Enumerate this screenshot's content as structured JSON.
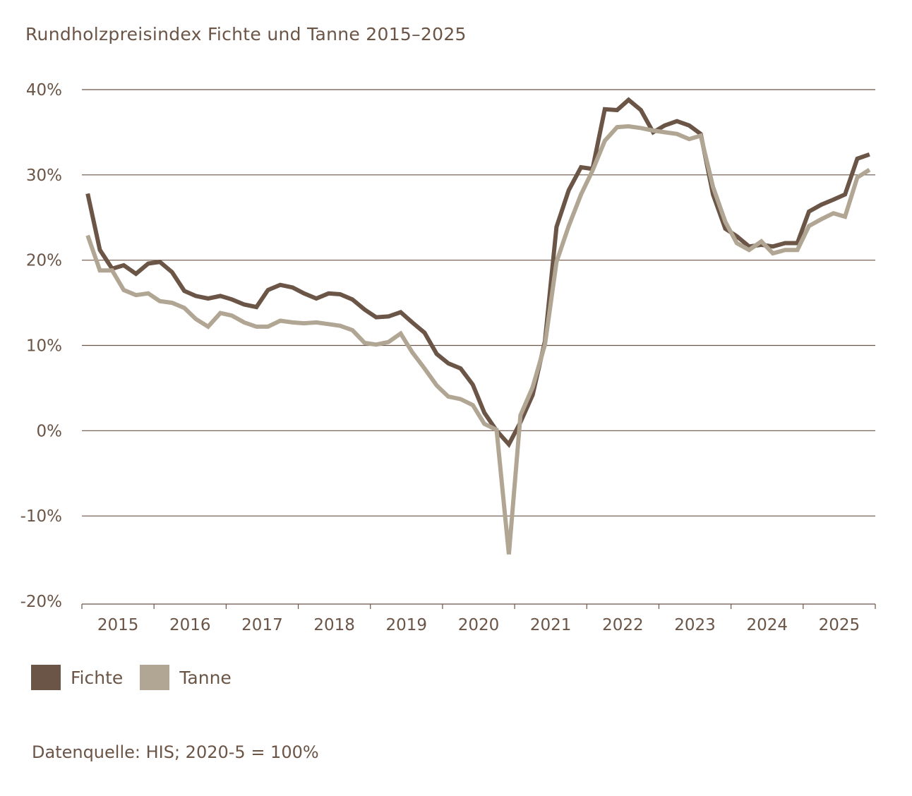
{
  "title": "Rundholzpreisindex Fichte und Tanne 2015–2025",
  "source": "Datenquelle: HIS; 2020-5 = 100%",
  "colors": {
    "fichte": "#6b5547",
    "tanne": "#b1a593",
    "grid": "#6b5547",
    "text": "#6b5547"
  },
  "chart_data": {
    "type": "line",
    "title": "Rundholzpreisindex Fichte und Tanne 2015–2025",
    "xlabel": "",
    "ylabel": "",
    "ylim": [
      -20,
      40
    ],
    "yticks": [
      40,
      30,
      20,
      10,
      0,
      -10,
      -20
    ],
    "ytick_labels": [
      "40%",
      "30%",
      "20%",
      "10%",
      "0%",
      "-10%",
      "-20%"
    ],
    "categories": [
      "2015",
      "2016",
      "2017",
      "2018",
      "2019",
      "2020",
      "2021",
      "2022",
      "2023",
      "2024",
      "2025"
    ],
    "x_start": 2015.0,
    "x_end": 2026.0,
    "grid": true,
    "legend_position": "bottom-left",
    "series": [
      {
        "name": "Fichte",
        "color": "#6b5547",
        "points": [
          [
            2015.08,
            27.8
          ],
          [
            2015.25,
            21.2
          ],
          [
            2015.42,
            19.0
          ],
          [
            2015.58,
            19.4
          ],
          [
            2015.75,
            18.4
          ],
          [
            2015.92,
            19.6
          ],
          [
            2016.08,
            19.8
          ],
          [
            2016.25,
            18.6
          ],
          [
            2016.42,
            16.4
          ],
          [
            2016.58,
            15.8
          ],
          [
            2016.75,
            15.5
          ],
          [
            2016.92,
            15.8
          ],
          [
            2017.08,
            15.4
          ],
          [
            2017.25,
            14.8
          ],
          [
            2017.42,
            14.5
          ],
          [
            2017.58,
            16.5
          ],
          [
            2017.75,
            17.1
          ],
          [
            2017.92,
            16.8
          ],
          [
            2018.08,
            16.1
          ],
          [
            2018.25,
            15.5
          ],
          [
            2018.42,
            16.1
          ],
          [
            2018.58,
            16.0
          ],
          [
            2018.75,
            15.4
          ],
          [
            2018.92,
            14.2
          ],
          [
            2019.08,
            13.3
          ],
          [
            2019.25,
            13.4
          ],
          [
            2019.42,
            13.9
          ],
          [
            2019.58,
            12.7
          ],
          [
            2019.75,
            11.5
          ],
          [
            2019.92,
            9.0
          ],
          [
            2020.08,
            7.9
          ],
          [
            2020.25,
            7.3
          ],
          [
            2020.42,
            5.4
          ],
          [
            2020.58,
            2.1
          ],
          [
            2020.75,
            0.0
          ],
          [
            2020.92,
            -1.6
          ],
          [
            2021.08,
            1.0
          ],
          [
            2021.25,
            4.2
          ],
          [
            2021.42,
            10.5
          ],
          [
            2021.58,
            23.9
          ],
          [
            2021.75,
            28.2
          ],
          [
            2021.92,
            30.9
          ],
          [
            2022.08,
            30.7
          ],
          [
            2022.25,
            37.7
          ],
          [
            2022.42,
            37.6
          ],
          [
            2022.58,
            38.8
          ],
          [
            2022.75,
            37.6
          ],
          [
            2022.92,
            35.0
          ],
          [
            2023.08,
            35.8
          ],
          [
            2023.25,
            36.3
          ],
          [
            2023.42,
            35.8
          ],
          [
            2023.58,
            34.8
          ],
          [
            2023.75,
            27.7
          ],
          [
            2023.92,
            23.7
          ],
          [
            2024.08,
            22.8
          ],
          [
            2024.25,
            21.6
          ],
          [
            2024.42,
            21.8
          ],
          [
            2024.58,
            21.6
          ],
          [
            2024.75,
            22.0
          ],
          [
            2024.92,
            22.0
          ],
          [
            2025.08,
            25.7
          ],
          [
            2025.25,
            26.5
          ],
          [
            2025.42,
            27.1
          ],
          [
            2025.58,
            27.7
          ],
          [
            2025.75,
            31.9
          ],
          [
            2025.92,
            32.4
          ]
        ]
      },
      {
        "name": "Tanne",
        "color": "#b1a593",
        "points": [
          [
            2015.08,
            22.9
          ],
          [
            2015.25,
            18.8
          ],
          [
            2015.42,
            18.8
          ],
          [
            2015.58,
            16.5
          ],
          [
            2015.75,
            15.9
          ],
          [
            2015.92,
            16.1
          ],
          [
            2016.08,
            15.2
          ],
          [
            2016.25,
            15.0
          ],
          [
            2016.42,
            14.4
          ],
          [
            2016.58,
            13.1
          ],
          [
            2016.75,
            12.2
          ],
          [
            2016.92,
            13.8
          ],
          [
            2017.08,
            13.5
          ],
          [
            2017.25,
            12.7
          ],
          [
            2017.42,
            12.2
          ],
          [
            2017.58,
            12.2
          ],
          [
            2017.75,
            12.9
          ],
          [
            2017.92,
            12.7
          ],
          [
            2018.08,
            12.6
          ],
          [
            2018.25,
            12.7
          ],
          [
            2018.42,
            12.5
          ],
          [
            2018.58,
            12.3
          ],
          [
            2018.75,
            11.8
          ],
          [
            2018.92,
            10.3
          ],
          [
            2019.08,
            10.1
          ],
          [
            2019.25,
            10.4
          ],
          [
            2019.42,
            11.4
          ],
          [
            2019.58,
            9.2
          ],
          [
            2019.75,
            7.3
          ],
          [
            2019.92,
            5.3
          ],
          [
            2020.08,
            4.0
          ],
          [
            2020.25,
            3.7
          ],
          [
            2020.42,
            3.0
          ],
          [
            2020.58,
            0.8
          ],
          [
            2020.75,
            0.1
          ],
          [
            2020.92,
            -14.5
          ],
          [
            2021.08,
            1.8
          ],
          [
            2021.25,
            5.1
          ],
          [
            2021.42,
            10.1
          ],
          [
            2021.58,
            19.8
          ],
          [
            2021.75,
            24.0
          ],
          [
            2021.92,
            27.7
          ],
          [
            2022.08,
            30.5
          ],
          [
            2022.25,
            34.0
          ],
          [
            2022.42,
            35.6
          ],
          [
            2022.58,
            35.7
          ],
          [
            2022.75,
            35.5
          ],
          [
            2022.92,
            35.2
          ],
          [
            2023.08,
            35.0
          ],
          [
            2023.25,
            34.8
          ],
          [
            2023.42,
            34.2
          ],
          [
            2023.58,
            34.6
          ],
          [
            2023.75,
            28.6
          ],
          [
            2023.92,
            24.5
          ],
          [
            2024.08,
            22.0
          ],
          [
            2024.25,
            21.2
          ],
          [
            2024.42,
            22.2
          ],
          [
            2024.58,
            20.8
          ],
          [
            2024.75,
            21.2
          ],
          [
            2024.92,
            21.2
          ],
          [
            2025.08,
            24.0
          ],
          [
            2025.25,
            24.8
          ],
          [
            2025.42,
            25.5
          ],
          [
            2025.58,
            25.1
          ],
          [
            2025.75,
            29.7
          ],
          [
            2025.92,
            30.6
          ]
        ]
      }
    ]
  },
  "legend": [
    {
      "label": "Fichte",
      "color": "#6b5547"
    },
    {
      "label": "Tanne",
      "color": "#b1a593"
    }
  ]
}
